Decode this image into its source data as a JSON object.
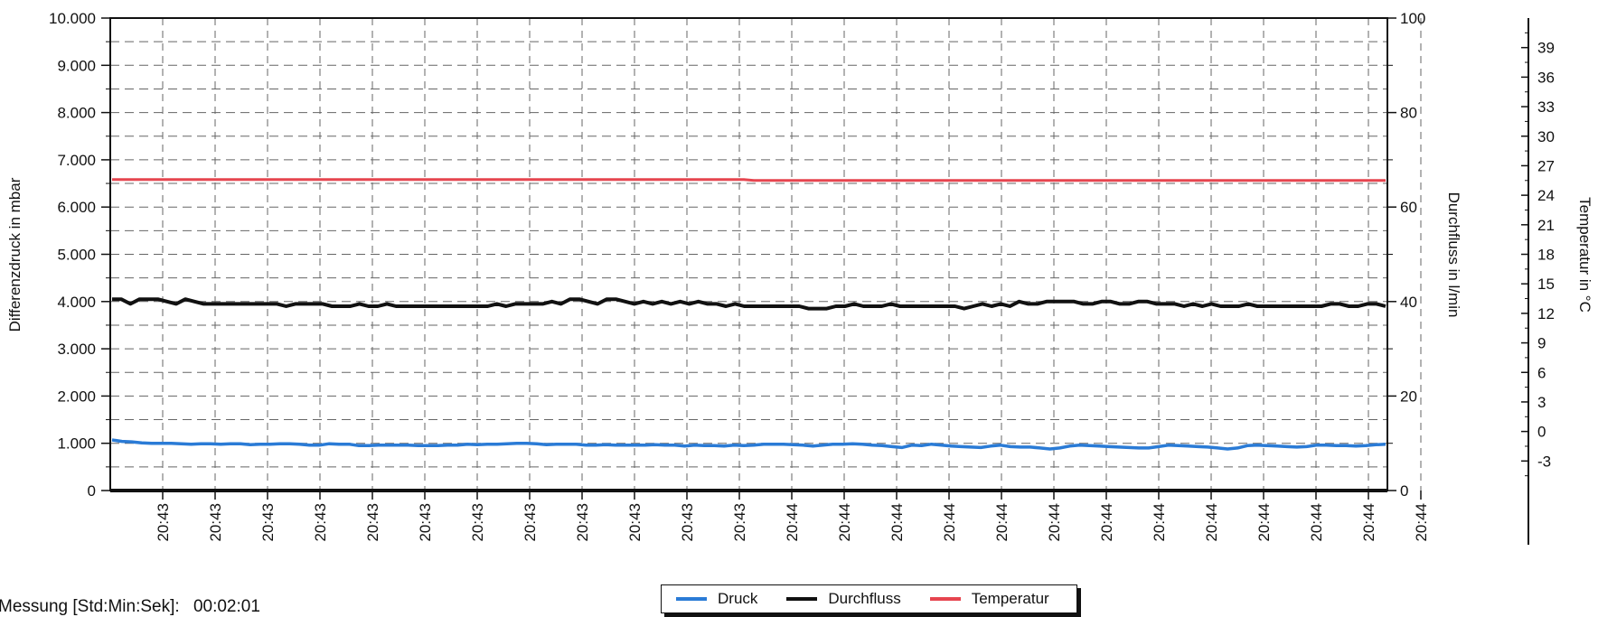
{
  "chart_data": {
    "type": "line",
    "x_labels": [
      "20:43",
      "20:43",
      "20:43",
      "20:43",
      "20:43",
      "20:43",
      "20:43",
      "20:43",
      "20:43",
      "20:43",
      "20:43",
      "20:43",
      "20:44",
      "20:44",
      "20:44",
      "20:44",
      "20:44",
      "20:44",
      "20:44",
      "20:44",
      "20:44",
      "20:44",
      "20:44",
      "20:44",
      "20:44"
    ],
    "left_axis": {
      "label": "Differenzdruck in mbar",
      "min": 0,
      "max": 10000,
      "ticks": [
        "0",
        "1.000",
        "2.000",
        "3.000",
        "4.000",
        "5.000",
        "6.000",
        "7.000",
        "8.000",
        "9.000",
        "10.000"
      ]
    },
    "right_axis": {
      "label": "Durchfluss in l/min",
      "min": 0,
      "max": 100,
      "ticks": [
        "0",
        "20",
        "40",
        "60",
        "80",
        "100"
      ]
    },
    "temp_axis": {
      "label": "Temperatur in °C",
      "min": -6,
      "max": 42,
      "ticks": [
        "-3",
        "0",
        "3",
        "6",
        "9",
        "12",
        "15",
        "18",
        "21",
        "24",
        "27",
        "30",
        "33",
        "36",
        "39"
      ]
    },
    "grid": true,
    "series": [
      {
        "name": "Druck",
        "axis": "left",
        "color": "#2a7bd6",
        "values": [
          1070,
          1040,
          1030,
          1010,
          1000,
          1000,
          1000,
          990,
          980,
          990,
          990,
          980,
          990,
          990,
          970,
          980,
          980,
          990,
          990,
          980,
          960,
          960,
          990,
          980,
          980,
          950,
          950,
          960,
          960,
          960,
          960,
          950,
          950,
          950,
          960,
          960,
          980,
          970,
          980,
          980,
          990,
          1000,
          1000,
          990,
          970,
          980,
          980,
          980,
          960,
          960,
          970,
          960,
          960,
          960,
          960,
          970,
          960,
          960,
          940,
          960,
          950,
          950,
          940,
          960,
          950,
          960,
          980,
          980,
          980,
          970,
          960,
          940,
          960,
          980,
          980,
          990,
          980,
          960,
          950,
          930,
          910,
          960,
          950,
          980,
          960,
          940,
          930,
          920,
          910,
          940,
          960,
          930,
          920,
          920,
          900,
          880,
          900,
          940,
          960,
          950,
          940,
          930,
          920,
          910,
          900,
          900,
          930,
          960,
          950,
          940,
          930,
          920,
          900,
          880,
          900,
          950,
          960,
          950,
          940,
          930,
          920,
          930,
          960,
          960,
          950,
          950,
          940,
          950,
          970,
          980
        ]
      },
      {
        "name": "Durchfluss",
        "axis": "right",
        "color": "#111111",
        "values": [
          40.5,
          40.5,
          39.5,
          40.5,
          40.5,
          40.5,
          40,
          39.5,
          40.5,
          40,
          39.5,
          39.5,
          39.5,
          39.5,
          39.5,
          39.5,
          39.5,
          39.5,
          39.5,
          39,
          39.5,
          39.5,
          39.5,
          39.5,
          39,
          39,
          39,
          39.5,
          39,
          39,
          39.5,
          39,
          39,
          39,
          39,
          39,
          39,
          39,
          39,
          39,
          39,
          39,
          39.5,
          39,
          39.5,
          39.5,
          39.5,
          39.5,
          40,
          39.5,
          40.5,
          40.5,
          40,
          39.5,
          40.5,
          40.5,
          40,
          39.5,
          40,
          39.5,
          40,
          39.5,
          40,
          39.5,
          40,
          39.5,
          39.5,
          39,
          39.5,
          39,
          39,
          39,
          39,
          39,
          39,
          39,
          38.5,
          38.5,
          38.5,
          39,
          39,
          39.5,
          39,
          39,
          39,
          39.5,
          39,
          39,
          39,
          39,
          39,
          39,
          39,
          38.5,
          39,
          39.5,
          39,
          39.5,
          39,
          40,
          39.5,
          39.5,
          40,
          40,
          40,
          40,
          39.5,
          39.5,
          40,
          40,
          39.5,
          39.5,
          40,
          40,
          39.5,
          39.5,
          39.5,
          39,
          39.5,
          39,
          39.5,
          39,
          39,
          39,
          39.5,
          39,
          39,
          39,
          39,
          39,
          39,
          39,
          39,
          39.5,
          39.5,
          39,
          39,
          39.5,
          39.5,
          39
        ]
      },
      {
        "name": "Temperatur",
        "axis": "temp",
        "color": "#e6454f",
        "values": [
          25.6,
          25.6,
          25.6,
          25.6,
          25.6,
          25.6,
          25.6,
          25.6,
          25.6,
          25.6,
          25.6,
          25.6,
          25.6,
          25.6,
          25.6,
          25.6,
          25.6,
          25.6,
          25.6,
          25.6,
          25.6,
          25.6,
          25.6,
          25.6,
          25.6,
          25.6,
          25.6,
          25.6,
          25.6,
          25.6,
          25.6,
          25.6,
          25.6,
          25.6,
          25.6,
          25.6,
          25.6,
          25.6,
          25.6,
          25.6,
          25.6,
          25.6,
          25.6,
          25.6,
          25.6,
          25.6,
          25.6,
          25.6,
          25.6,
          25.6,
          25.6,
          25.6,
          25.6,
          25.6,
          25.6,
          25.6,
          25.6,
          25.6,
          25.6,
          25.6,
          25.6,
          25.6,
          25.6,
          25.6,
          25.6,
          25.5,
          25.5,
          25.5,
          25.5,
          25.5,
          25.5,
          25.5,
          25.5,
          25.5,
          25.5,
          25.5,
          25.5,
          25.5,
          25.5,
          25.5,
          25.5,
          25.5,
          25.5,
          25.5,
          25.5,
          25.5,
          25.5,
          25.5,
          25.5,
          25.5,
          25.5,
          25.5,
          25.5,
          25.5,
          25.5,
          25.5,
          25.5,
          25.5,
          25.5,
          25.5,
          25.5,
          25.5,
          25.5,
          25.5,
          25.5,
          25.5,
          25.5,
          25.5,
          25.5,
          25.5,
          25.5,
          25.5,
          25.5,
          25.5,
          25.5,
          25.5,
          25.5,
          25.5,
          25.5,
          25.5,
          25.5,
          25.5,
          25.5,
          25.5,
          25.5,
          25.5,
          25.5,
          25.5,
          25.5,
          25.5
        ]
      }
    ]
  },
  "legend": {
    "items": [
      {
        "label": "Druck",
        "color": "#2a7bd6"
      },
      {
        "label": "Durchfluss",
        "color": "#111111"
      },
      {
        "label": "Temperatur",
        "color": "#e6454f"
      }
    ]
  },
  "footer": {
    "label": "Messung [Std:Min:Sek]:",
    "value": "00:02:01"
  }
}
